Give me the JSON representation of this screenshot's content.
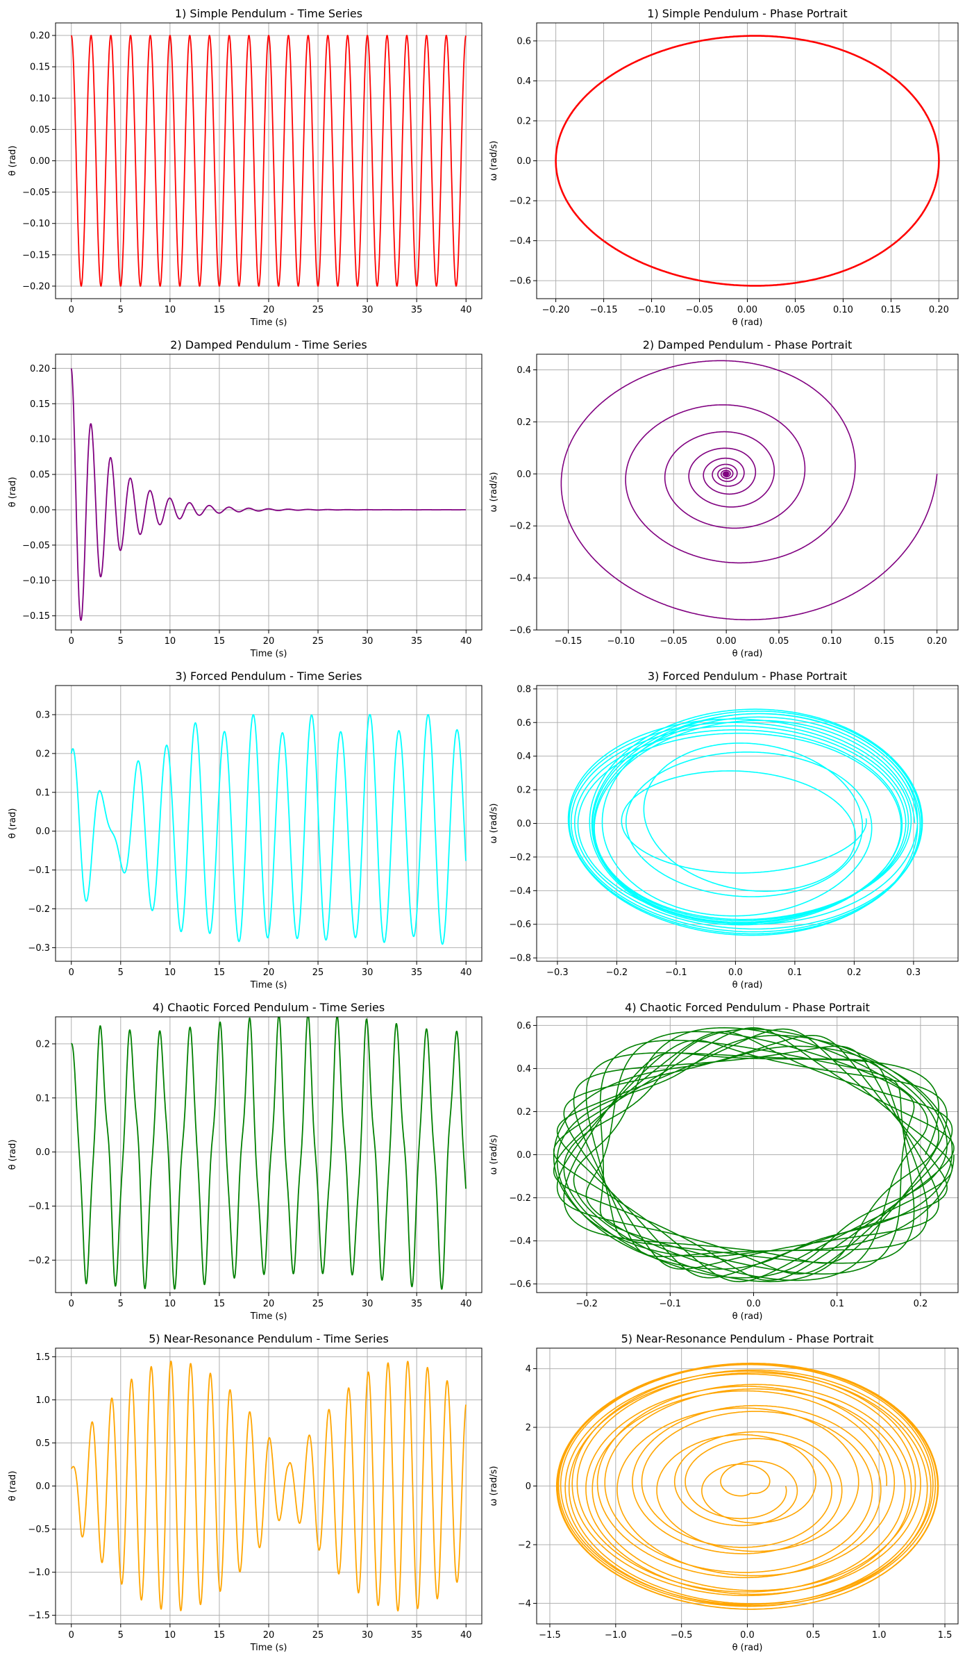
{
  "chart_data": [
    {
      "type": "line",
      "title": "1) Simple Pendulum - Time Series",
      "xlabel": "Time (s)",
      "ylabel": "θ (rad)",
      "xlim": [
        -1.6,
        41.6
      ],
      "ylim": [
        -0.22,
        0.22
      ],
      "xticks": [
        0,
        5,
        10,
        15,
        20,
        25,
        30,
        35,
        40
      ],
      "xtick_labels": [
        "0",
        "5",
        "10",
        "15",
        "20",
        "25",
        "30",
        "35",
        "40"
      ],
      "yticks": [
        -0.2,
        -0.15,
        -0.1,
        -0.05,
        0,
        0.05,
        0.1,
        0.15,
        0.2
      ],
      "ytick_labels": [
        "−0.20",
        "−0.15",
        "−0.10",
        "−0.05",
        "0.00",
        "0.05",
        "0.10",
        "0.15",
        "0.20"
      ],
      "grid": true,
      "color": "#ff0000",
      "series": [
        {
          "model": "ts",
          "theta0": 0.2,
          "period": 2.0,
          "tau": 0,
          "t_end": 40
        }
      ]
    },
    {
      "type": "line",
      "title": "1) Simple Pendulum - Phase Portrait",
      "xlabel": "θ (rad)",
      "ylabel": "ω (rad/s)",
      "xlim": [
        -0.22,
        0.22
      ],
      "ylim": [
        -0.69,
        0.69
      ],
      "xticks": [
        -0.2,
        -0.15,
        -0.1,
        -0.05,
        0,
        0.05,
        0.1,
        0.15,
        0.2
      ],
      "xtick_labels": [
        "−0.20",
        "−0.15",
        "−0.10",
        "−0.05",
        "0.00",
        "0.05",
        "0.10",
        "0.15",
        "0.20"
      ],
      "yticks": [
        -0.6,
        -0.4,
        -0.2,
        0,
        0.2,
        0.4,
        0.6
      ],
      "ytick_labels": [
        "−0.6",
        "−0.4",
        "−0.2",
        "0.0",
        "0.2",
        "0.4",
        "0.6"
      ],
      "grid": true,
      "color": "#ff0000",
      "series": [
        {
          "model": "phase",
          "theta0": 0.2,
          "omega_max": 0.625,
          "decay": 1.0,
          "turns": 1,
          "lw": 2.6
        }
      ]
    },
    {
      "type": "line",
      "title": "2) Damped Pendulum - Time Series",
      "xlabel": "Time (s)",
      "ylabel": "θ (rad)",
      "xlim": [
        -1.6,
        41.6
      ],
      "ylim": [
        -0.17,
        0.22
      ],
      "xticks": [
        0,
        5,
        10,
        15,
        20,
        25,
        30,
        35,
        40
      ],
      "xtick_labels": [
        "0",
        "5",
        "10",
        "15",
        "20",
        "25",
        "30",
        "35",
        "40"
      ],
      "yticks": [
        -0.15,
        -0.1,
        -0.05,
        0,
        0.05,
        0.1,
        0.15,
        0.2
      ],
      "ytick_labels": [
        "−0.15",
        "−0.10",
        "−0.05",
        "0.00",
        "0.05",
        "0.10",
        "0.15",
        "0.20"
      ],
      "grid": true,
      "color": "#800080",
      "series": [
        {
          "model": "ts",
          "theta0": 0.2,
          "period": 2.0,
          "tau": 4.0,
          "t_end": 40
        }
      ]
    },
    {
      "type": "line",
      "title": "2) Damped Pendulum - Phase Portrait",
      "xlabel": "θ (rad)",
      "ylabel": "ω (rad/s)",
      "xlim": [
        -0.18,
        0.22
      ],
      "ylim": [
        -0.6,
        0.46
      ],
      "xticks": [
        -0.15,
        -0.1,
        -0.05,
        0,
        0.05,
        0.1,
        0.15,
        0.2
      ],
      "xtick_labels": [
        "−0.15",
        "−0.10",
        "−0.05",
        "0.00",
        "0.05",
        "0.10",
        "0.15",
        "0.20"
      ],
      "yticks": [
        -0.6,
        -0.4,
        -0.2,
        0,
        0.2,
        0.4
      ],
      "ytick_labels": [
        "−0.6",
        "−0.4",
        "−0.2",
        "0.0",
        "0.2",
        "0.4"
      ],
      "grid": true,
      "color": "#800080",
      "series": [
        {
          "model": "phase",
          "theta0": 0.2,
          "omega_max": 0.63,
          "decay": 0.61,
          "turns": 12,
          "lw": 1.6
        }
      ]
    },
    {
      "type": "line",
      "title": "3) Forced Pendulum - Time Series",
      "xlabel": "Time (s)",
      "ylabel": "θ (rad)",
      "xlim": [
        -1.6,
        41.6
      ],
      "ylim": [
        -0.335,
        0.375
      ],
      "xticks": [
        0,
        5,
        10,
        15,
        20,
        25,
        30,
        35,
        40
      ],
      "xtick_labels": [
        "0",
        "5",
        "10",
        "15",
        "20",
        "25",
        "30",
        "35",
        "40"
      ],
      "yticks": [
        -0.3,
        -0.2,
        -0.1,
        0,
        0.1,
        0.2,
        0.3
      ],
      "ytick_labels": [
        "−0.3",
        "−0.2",
        "−0.1",
        "0.0",
        "0.1",
        "0.2",
        "0.3"
      ],
      "grid": true,
      "color": "#00ffff",
      "series": [
        {
          "model": "forced",
          "theta0": 0.2,
          "amp": 0.28,
          "beat": 0.08,
          "period": 2.95,
          "tau": 5.0,
          "t_end": 40
        }
      ]
    },
    {
      "type": "line",
      "title": "3) Forced Pendulum - Phase Portrait",
      "xlabel": "θ (rad)",
      "ylabel": "ω (rad/s)",
      "xlim": [
        -0.335,
        0.375
      ],
      "ylim": [
        -0.82,
        0.82
      ],
      "xticks": [
        -0.3,
        -0.2,
        -0.1,
        0,
        0.1,
        0.2,
        0.3
      ],
      "xtick_labels": [
        "−0.3",
        "−0.2",
        "−0.1",
        "0.0",
        "0.1",
        "0.2",
        "0.3"
      ],
      "yticks": [
        -0.8,
        -0.6,
        -0.4,
        -0.2,
        0,
        0.2,
        0.4,
        0.6,
        0.8
      ],
      "ytick_labels": [
        "−0.8",
        "−0.6",
        "−0.4",
        "−0.2",
        "0.0",
        "0.2",
        "0.4",
        "0.6",
        "0.8"
      ],
      "grid": true,
      "color": "#00ffff",
      "series": [
        {
          "model": "forced-phase",
          "theta0": 0.2,
          "amp": 0.28,
          "beat": 0.08,
          "omega_amp": 0.62,
          "turns": 14,
          "lw": 1.6
        }
      ]
    },
    {
      "type": "line",
      "title": "4) Chaotic Forced Pendulum - Time Series",
      "xlabel": "Time (s)",
      "ylabel": "θ (rad)",
      "xlim": [
        -1.6,
        41.6
      ],
      "ylim": [
        -0.26,
        0.25
      ],
      "xticks": [
        0,
        5,
        10,
        15,
        20,
        25,
        30,
        35,
        40
      ],
      "xtick_labels": [
        "0",
        "5",
        "10",
        "15",
        "20",
        "25",
        "30",
        "35",
        "40"
      ],
      "yticks": [
        -0.2,
        -0.1,
        0,
        0.1,
        0.2
      ],
      "ytick_labels": [
        "−0.2",
        "−0.1",
        "0.0",
        "0.1",
        "0.2"
      ],
      "grid": true,
      "color": "#008000",
      "series": [
        {
          "model": "chaotic",
          "theta0": 0.2,
          "amp": 0.21,
          "period": 3.0,
          "t_end": 40
        }
      ]
    },
    {
      "type": "line",
      "title": "4) Chaotic Forced Pendulum - Phase Portrait",
      "xlabel": "θ (rad)",
      "ylabel": "ω (rad/s)",
      "xlim": [
        -0.26,
        0.245
      ],
      "ylim": [
        -0.64,
        0.64
      ],
      "xticks": [
        -0.2,
        -0.1,
        0,
        0.1,
        0.2
      ],
      "xtick_labels": [
        "−0.2",
        "−0.1",
        "0.0",
        "0.1",
        "0.2"
      ],
      "yticks": [
        -0.6,
        -0.4,
        -0.2,
        0,
        0.2,
        0.4,
        0.6
      ],
      "ytick_labels": [
        "−0.6",
        "−0.4",
        "−0.2",
        "0.0",
        "0.2",
        "0.4",
        "0.6"
      ],
      "grid": true,
      "color": "#008000",
      "series": [
        {
          "model": "chaotic-phase",
          "theta0": 0.2,
          "amp": 0.21,
          "omega_amp": 0.52,
          "turns": 14,
          "lw": 1.6
        }
      ]
    },
    {
      "type": "line",
      "title": "5) Near-Resonance Pendulum - Time Series",
      "xlabel": "Time (s)",
      "ylabel": "θ (rad)",
      "xlim": [
        -1.6,
        41.6
      ],
      "ylim": [
        -1.6,
        1.6
      ],
      "xticks": [
        0,
        5,
        10,
        15,
        20,
        25,
        30,
        35,
        40
      ],
      "xtick_labels": [
        "0",
        "5",
        "10",
        "15",
        "20",
        "25",
        "30",
        "35",
        "40"
      ],
      "yticks": [
        -1.5,
        -1.0,
        -0.5,
        0,
        0.5,
        1.0,
        1.5
      ],
      "ytick_labels": [
        "−1.5",
        "−1.0",
        "−0.5",
        "0.0",
        "0.5",
        "1.0",
        "1.5"
      ],
      "grid": true,
      "color": "#ffa500",
      "series": [
        {
          "model": "resonance",
          "theta0": 0.2,
          "amp": 1.45,
          "period": 2.0,
          "beat_period": 23.0,
          "t_end": 40
        }
      ]
    },
    {
      "type": "line",
      "title": "5) Near-Resonance Pendulum - Phase Portrait",
      "xlabel": "θ (rad)",
      "ylabel": "ω (rad/s)",
      "xlim": [
        -1.6,
        1.6
      ],
      "ylim": [
        -4.7,
        4.7
      ],
      "xticks": [
        -1.5,
        -1.0,
        -0.5,
        0,
        0.5,
        1.0,
        1.5
      ],
      "xtick_labels": [
        "−1.5",
        "−1.0",
        "−0.5",
        "0.0",
        "0.5",
        "1.0",
        "1.5"
      ],
      "yticks": [
        -4,
        -2,
        0,
        2,
        4
      ],
      "ytick_labels": [
        "−4",
        "−2",
        "0",
        "2",
        "4"
      ],
      "grid": true,
      "color": "#ffa500",
      "series": [
        {
          "model": "resonance-phase",
          "theta0": 0.2,
          "amp": 1.45,
          "omega_amp": 4.2,
          "turns": 20,
          "lw": 1.6
        }
      ]
    }
  ]
}
